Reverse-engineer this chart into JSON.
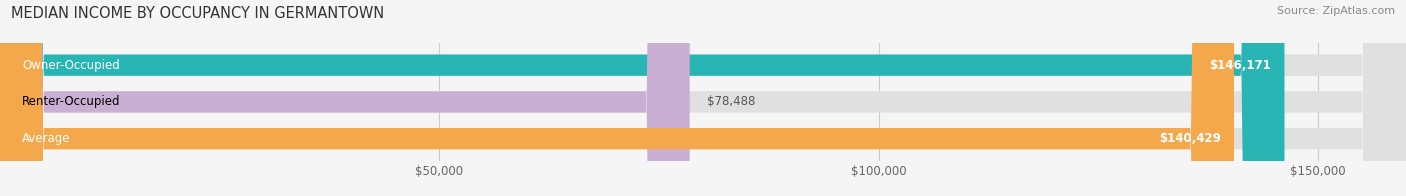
{
  "title": "MEDIAN INCOME BY OCCUPANCY IN GERMANTOWN",
  "source": "Source: ZipAtlas.com",
  "categories": [
    "Owner-Occupied",
    "Renter-Occupied",
    "Average"
  ],
  "values": [
    146171,
    78488,
    140429
  ],
  "bar_colors": [
    "#2ab5b5",
    "#c9afd4",
    "#f5a84b"
  ],
  "bar_labels": [
    "$146,171",
    "$78,488",
    "$140,429"
  ],
  "label_inside": [
    true,
    false,
    true
  ],
  "xlim": [
    0,
    160000
  ],
  "xticks": [
    50000,
    100000,
    150000
  ],
  "xticklabels": [
    "$50,000",
    "$100,000",
    "$150,000"
  ],
  "background_color": "#f5f5f5",
  "bar_bg_color": "#e0e0e0",
  "title_fontsize": 10.5,
  "source_fontsize": 8,
  "label_fontsize": 8.5,
  "cat_fontsize": 8.5,
  "bar_height": 0.58,
  "figsize": [
    14.06,
    1.96
  ],
  "dpi": 100
}
